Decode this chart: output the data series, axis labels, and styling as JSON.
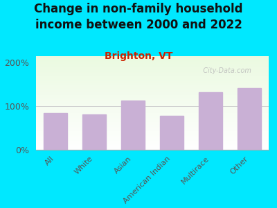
{
  "title": "Change in non-family household\nincome between 2000 and 2022",
  "subtitle": "Brighton, VT",
  "categories": [
    "All",
    "White",
    "Asian",
    "American Indian",
    "Multirace",
    "Other"
  ],
  "values": [
    85,
    82,
    113,
    78,
    132,
    142
  ],
  "bar_color": "#c9b0d5",
  "background_outer": "#00e8ff",
  "yticks": [
    0,
    100,
    200
  ],
  "ytick_labels": [
    "0%",
    "100%",
    "200%"
  ],
  "ylim": [
    0,
    215
  ],
  "title_fontsize": 12,
  "title_color": "#111111",
  "subtitle_fontsize": 10,
  "subtitle_color": "#cc2200",
  "tick_label_color": "#555555",
  "xtick_fontsize": 8,
  "ytick_fontsize": 9,
  "watermark": "  City-Data.com",
  "watermark_color": "#bbbbbb"
}
